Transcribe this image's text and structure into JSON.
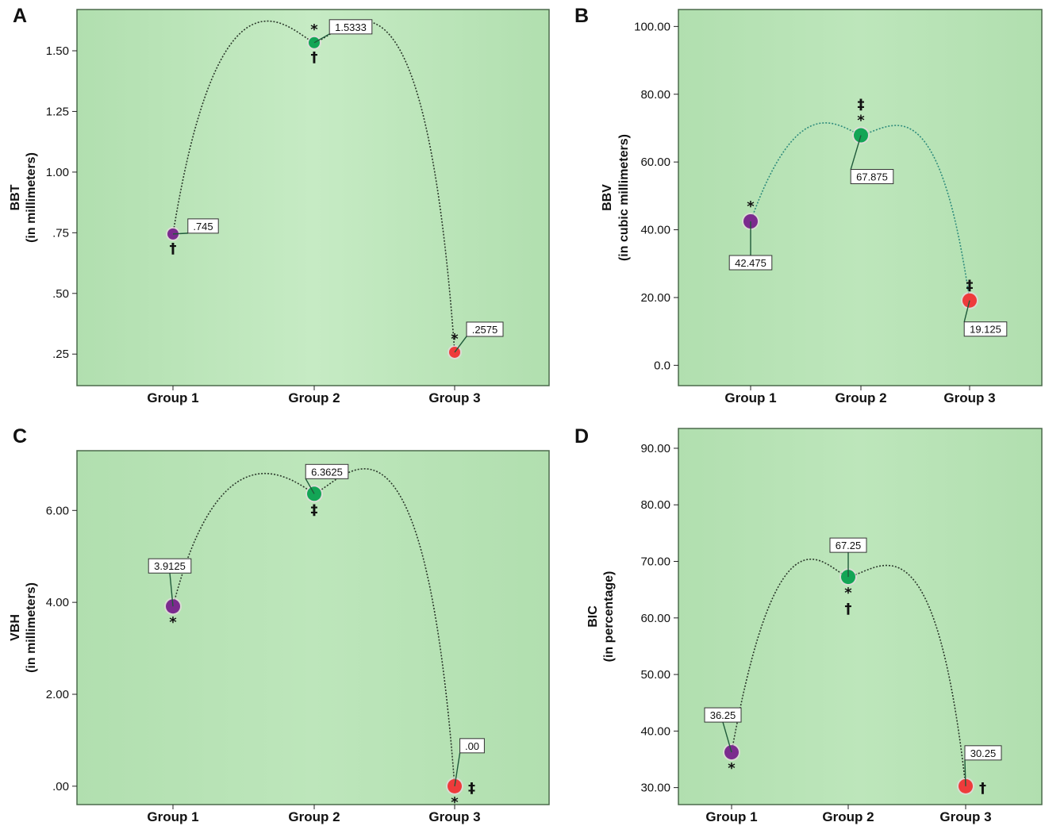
{
  "colors": {
    "plot_bg": "#bfe6bd",
    "plot_border": "#4b6a4b",
    "group1": "#7b2b8e",
    "group2": "#13a556",
    "group3": "#ee3b3b",
    "curve": "#2c3a2c",
    "curve_b": "#2f8c7c"
  },
  "chart_data": [
    {
      "panel": "A",
      "type": "line",
      "ylabel_line1": "BBT",
      "ylabel_line2": "(in millimeters)",
      "categories": [
        "Group 1",
        "Group 2",
        "Group 3"
      ],
      "values": [
        0.745,
        1.5333,
        0.2575
      ],
      "data_labels": [
        ".745",
        "1.5333",
        ".2575"
      ],
      "yticks": [
        0.25,
        0.5,
        0.75,
        1.0,
        1.25,
        1.5
      ],
      "ytick_labels": [
        ".25",
        ".50",
        ".75",
        "1.00",
        "1.25",
        "1.50"
      ],
      "ylim": [
        0.12,
        1.67
      ],
      "curve_peak": 1.545,
      "markers": [
        {
          "above": "",
          "below": "†"
        },
        {
          "above": "*",
          "below": "†"
        },
        {
          "above": "*",
          "below": ""
        }
      ]
    },
    {
      "panel": "B",
      "type": "line",
      "ylabel_line1": "BBV",
      "ylabel_line2": "(in cubic millimeters)",
      "categories": [
        "Group 1",
        "Group 2",
        "Group 3"
      ],
      "values": [
        42.475,
        67.875,
        19.125
      ],
      "data_labels": [
        "42.475",
        "67.875",
        "19.125"
      ],
      "yticks": [
        0,
        20,
        40,
        60,
        80,
        100
      ],
      "ytick_labels": [
        "0.0",
        "20.00",
        "40.00",
        "60.00",
        "80.00",
        "100.00"
      ],
      "ylim": [
        -6,
        105
      ],
      "curve_peak": 68.5,
      "markers": [
        {
          "above": "*",
          "below": ""
        },
        {
          "above": "‡\n*",
          "below": ""
        },
        {
          "above": "‡",
          "below": ""
        }
      ]
    },
    {
      "panel": "C",
      "type": "line",
      "ylabel_line1": "VBH",
      "ylabel_line2": "(in millimeters)",
      "categories": [
        "Group 1",
        "Group 2",
        "Group 3"
      ],
      "values": [
        3.9125,
        6.3625,
        0.0
      ],
      "data_labels": [
        "3.9125",
        "6.3625",
        ".00"
      ],
      "yticks": [
        0,
        2,
        4,
        6
      ],
      "ytick_labels": [
        ".00",
        "2.00",
        "4.00",
        "6.00"
      ],
      "ylim": [
        -0.4,
        7.3
      ],
      "curve_peak": 6.53,
      "markers": [
        {
          "above": "",
          "below": "*"
        },
        {
          "above": "",
          "below": "‡"
        },
        {
          "above": "",
          "below": "*",
          "right": "‡"
        }
      ]
    },
    {
      "panel": "D",
      "type": "line",
      "ylabel_line1": "BIC",
      "ylabel_line2": "(in percentage)",
      "categories": [
        "Group 1",
        "Group 2",
        "Group 3"
      ],
      "values": [
        36.25,
        67.25,
        30.25
      ],
      "data_labels": [
        "36.25",
        "67.25",
        "30.25"
      ],
      "yticks": [
        30,
        40,
        50,
        60,
        70,
        80,
        90
      ],
      "ytick_labels": [
        "30.00",
        "40.00",
        "50.00",
        "60.00",
        "70.00",
        "80.00",
        "90.00"
      ],
      "ylim": [
        27,
        93.5
      ],
      "curve_peak": 67.3,
      "markers": [
        {
          "above": "",
          "below": "*"
        },
        {
          "above": "",
          "below": "*\n†"
        },
        {
          "above": "",
          "below": "",
          "right": "†"
        }
      ]
    }
  ]
}
